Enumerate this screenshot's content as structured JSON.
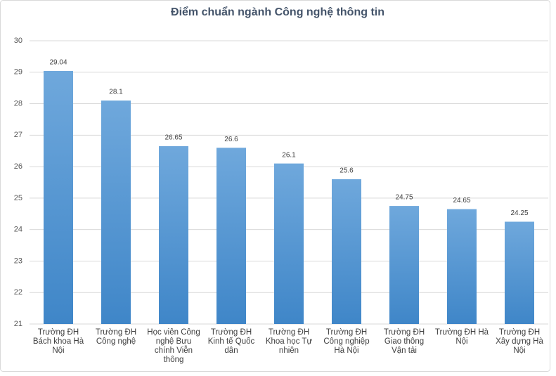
{
  "chart_data": {
    "type": "bar",
    "title": "Điểm chuẩn ngành Công nghệ thông tin",
    "categories": [
      "Trường ĐH Bách khoa Hà Nội",
      "Trường ĐH Công nghệ",
      "Học viên Công nghệ Bưu chính Viễn thông",
      "Trường ĐH Kinh tế Quốc dân",
      "Trường ĐH Khoa học Tự nhiên",
      "Trường ĐH Công nghiệp Hà Nội",
      "Trường ĐH Giao thông Vận tải",
      "Trường ĐH Hà Nội",
      "Trường ĐH Xây dựng Hà Nội"
    ],
    "values": [
      29.04,
      28.1,
      26.65,
      26.6,
      26.1,
      25.6,
      24.75,
      24.65,
      24.25
    ],
    "color": "#5b9bd5",
    "ylim": [
      21,
      30
    ],
    "yticks": [
      21,
      22,
      23,
      24,
      25,
      26,
      27,
      28,
      29,
      30
    ],
    "grid": true
  }
}
